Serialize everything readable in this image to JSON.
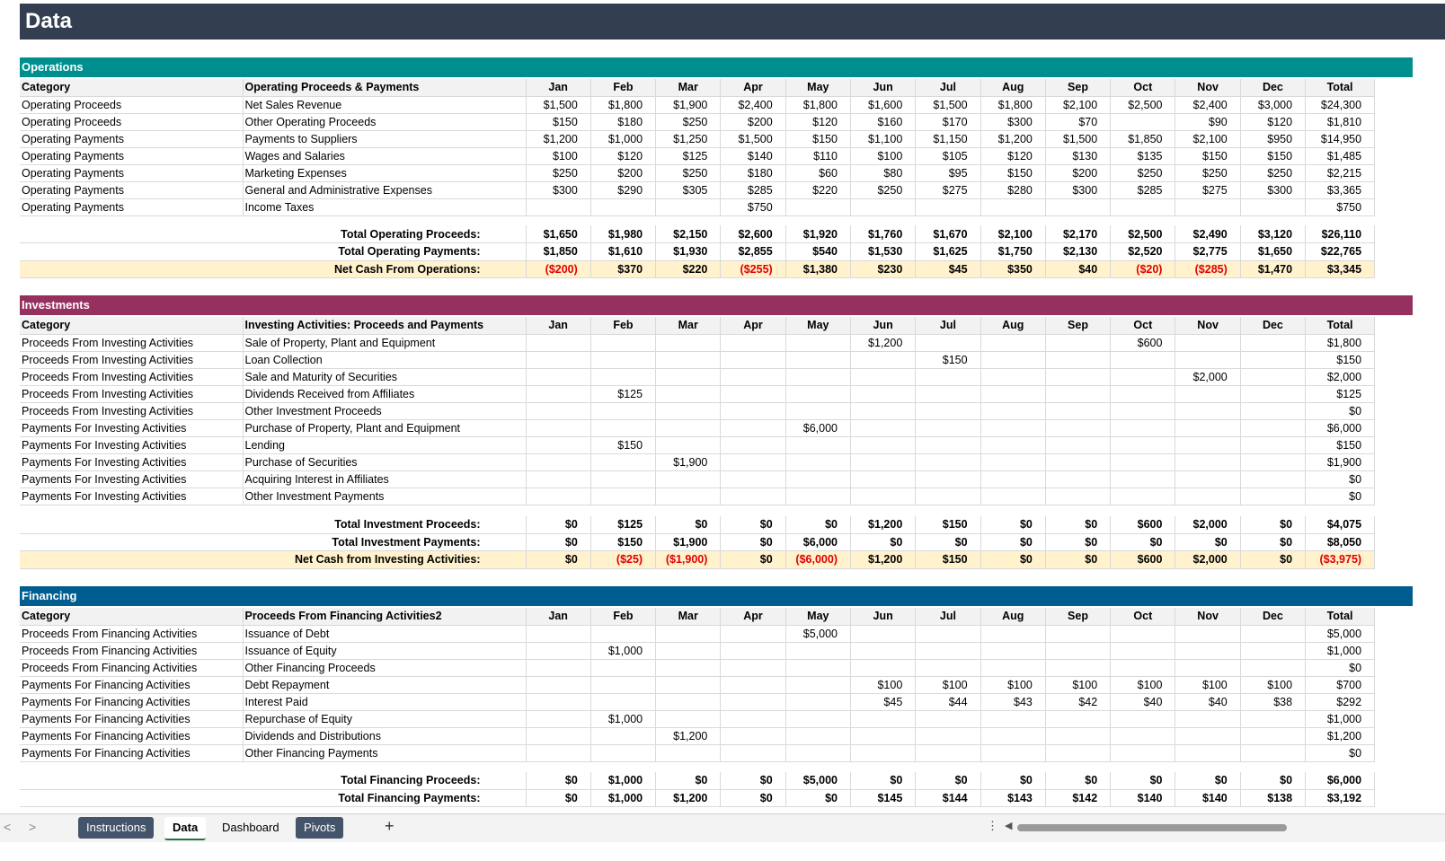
{
  "banner": {
    "title": "Data"
  },
  "months": [
    "Jan",
    "Feb",
    "Mar",
    "Apr",
    "May",
    "Jun",
    "Jul",
    "Aug",
    "Sep",
    "Oct",
    "Nov",
    "Dec"
  ],
  "total_label": "Total",
  "category_label": "Category",
  "colors": {
    "banner": "#333f50",
    "operations": "#008f8f",
    "investments": "#96305f",
    "financing": "#005d8f",
    "net_row": "#fff2cc",
    "negative": "#e00000"
  },
  "operations": {
    "title": "Operations",
    "sub_header": "Operating Proceeds & Payments",
    "rows": [
      {
        "cat": "Operating Proceeds",
        "item": "Net Sales Revenue",
        "vals": [
          "$1,500",
          "$1,800",
          "$1,900",
          "$2,400",
          "$1,800",
          "$1,600",
          "$1,500",
          "$1,800",
          "$2,100",
          "$2,500",
          "$2,400",
          "$3,000"
        ],
        "total": "$24,300"
      },
      {
        "cat": "Operating Proceeds",
        "item": "Other Operating Proceeds",
        "vals": [
          "$150",
          "$180",
          "$250",
          "$200",
          "$120",
          "$160",
          "$170",
          "$300",
          "$70",
          "",
          "$90",
          "$120"
        ],
        "total": "$1,810"
      },
      {
        "cat": "Operating Payments",
        "item": "Payments to Suppliers",
        "vals": [
          "$1,200",
          "$1,000",
          "$1,250",
          "$1,500",
          "$150",
          "$1,100",
          "$1,150",
          "$1,200",
          "$1,500",
          "$1,850",
          "$2,100",
          "$950"
        ],
        "total": "$14,950"
      },
      {
        "cat": "Operating Payments",
        "item": "Wages and Salaries",
        "vals": [
          "$100",
          "$120",
          "$125",
          "$140",
          "$110",
          "$100",
          "$105",
          "$120",
          "$130",
          "$135",
          "$150",
          "$150"
        ],
        "total": "$1,485"
      },
      {
        "cat": "Operating Payments",
        "item": "Marketing Expenses",
        "vals": [
          "$250",
          "$200",
          "$250",
          "$180",
          "$60",
          "$80",
          "$95",
          "$150",
          "$200",
          "$250",
          "$250",
          "$250"
        ],
        "total": "$2,215"
      },
      {
        "cat": "Operating Payments",
        "item": "General and Administrative Expenses",
        "vals": [
          "$300",
          "$290",
          "$305",
          "$285",
          "$220",
          "$250",
          "$275",
          "$280",
          "$300",
          "$285",
          "$275",
          "$300"
        ],
        "total": "$3,365"
      },
      {
        "cat": "Operating Payments",
        "item": "Income Taxes",
        "vals": [
          "",
          "",
          "",
          "$750",
          "",
          "",
          "",
          "",
          "",
          "",
          "",
          ""
        ],
        "total": "$750"
      }
    ],
    "totals": [
      {
        "label": "Total Operating Proceeds:",
        "vals": [
          "$1,650",
          "$1,980",
          "$2,150",
          "$2,600",
          "$1,920",
          "$1,760",
          "$1,670",
          "$2,100",
          "$2,170",
          "$2,500",
          "$2,490",
          "$3,120"
        ],
        "total": "$26,110"
      },
      {
        "label": "Total Operating Payments:",
        "vals": [
          "$1,850",
          "$1,610",
          "$1,930",
          "$2,855",
          "$540",
          "$1,530",
          "$1,625",
          "$1,750",
          "$2,130",
          "$2,520",
          "$2,775",
          "$1,650"
        ],
        "total": "$22,765"
      },
      {
        "label": "Net Cash From Operations:",
        "vals": [
          "($200)",
          "$370",
          "$220",
          "($255)",
          "$1,380",
          "$230",
          "$45",
          "$350",
          "$40",
          "($20)",
          "($285)",
          "$1,470"
        ],
        "total": "$3,345",
        "net": true
      }
    ]
  },
  "investments": {
    "title": "Investments",
    "sub_header": "Investing Activities: Proceeds and Payments",
    "rows": [
      {
        "cat": "Proceeds From Investing Activities",
        "item": "Sale of Property, Plant and Equipment",
        "vals": [
          "",
          "",
          "",
          "",
          "",
          "$1,200",
          "",
          "",
          "",
          "$600",
          "",
          ""
        ],
        "total": "$1,800"
      },
      {
        "cat": "Proceeds From Investing Activities",
        "item": "Loan Collection",
        "vals": [
          "",
          "",
          "",
          "",
          "",
          "",
          "$150",
          "",
          "",
          "",
          "",
          ""
        ],
        "total": "$150"
      },
      {
        "cat": "Proceeds From Investing Activities",
        "item": "Sale and Maturity of Securities",
        "vals": [
          "",
          "",
          "",
          "",
          "",
          "",
          "",
          "",
          "",
          "",
          "$2,000",
          ""
        ],
        "total": "$2,000"
      },
      {
        "cat": "Proceeds From Investing Activities",
        "item": "Dividends Received from Affiliates",
        "vals": [
          "",
          "$125",
          "",
          "",
          "",
          "",
          "",
          "",
          "",
          "",
          "",
          ""
        ],
        "total": "$125"
      },
      {
        "cat": "Proceeds From Investing Activities",
        "item": "Other Investment Proceeds",
        "vals": [
          "",
          "",
          "",
          "",
          "",
          "",
          "",
          "",
          "",
          "",
          "",
          ""
        ],
        "total": "$0"
      },
      {
        "cat": "Payments For Investing Activities",
        "item": "Purchase of Property, Plant and Equipment",
        "vals": [
          "",
          "",
          "",
          "",
          "$6,000",
          "",
          "",
          "",
          "",
          "",
          "",
          ""
        ],
        "total": "$6,000"
      },
      {
        "cat": "Payments For Investing Activities",
        "item": "Lending",
        "vals": [
          "",
          "$150",
          "",
          "",
          "",
          "",
          "",
          "",
          "",
          "",
          "",
          ""
        ],
        "total": "$150"
      },
      {
        "cat": "Payments For Investing Activities",
        "item": "Purchase of Securities",
        "vals": [
          "",
          "",
          "$1,900",
          "",
          "",
          "",
          "",
          "",
          "",
          "",
          "",
          ""
        ],
        "total": "$1,900"
      },
      {
        "cat": "Payments For Investing Activities",
        "item": "Acquiring Interest in Affiliates",
        "vals": [
          "",
          "",
          "",
          "",
          "",
          "",
          "",
          "",
          "",
          "",
          "",
          ""
        ],
        "total": "$0"
      },
      {
        "cat": "Payments For Investing Activities",
        "item": "Other Investment Payments",
        "vals": [
          "",
          "",
          "",
          "",
          "",
          "",
          "",
          "",
          "",
          "",
          "",
          ""
        ],
        "total": "$0"
      }
    ],
    "totals": [
      {
        "label": "Total Investment Proceeds:",
        "vals": [
          "$0",
          "$125",
          "$0",
          "$0",
          "$0",
          "$1,200",
          "$150",
          "$0",
          "$0",
          "$600",
          "$2,000",
          "$0"
        ],
        "total": "$4,075"
      },
      {
        "label": "Total Investment Payments:",
        "vals": [
          "$0",
          "$150",
          "$1,900",
          "$0",
          "$6,000",
          "$0",
          "$0",
          "$0",
          "$0",
          "$0",
          "$0",
          "$0"
        ],
        "total": "$8,050"
      },
      {
        "label": "Net Cash from Investing Activities:",
        "vals": [
          "$0",
          "($25)",
          "($1,900)",
          "$0",
          "($6,000)",
          "$1,200",
          "$150",
          "$0",
          "$0",
          "$600",
          "$2,000",
          "$0"
        ],
        "total": "($3,975)",
        "net": true
      }
    ]
  },
  "financing": {
    "title": "Financing",
    "sub_header": "Proceeds From Financing Activities2",
    "rows": [
      {
        "cat": "Proceeds From Financing Activities",
        "item": "Issuance of Debt",
        "vals": [
          "",
          "",
          "",
          "",
          "$5,000",
          "",
          "",
          "",
          "",
          "",
          "",
          ""
        ],
        "total": "$5,000"
      },
      {
        "cat": "Proceeds From Financing Activities",
        "item": "Issuance of Equity",
        "vals": [
          "",
          "$1,000",
          "",
          "",
          "",
          "",
          "",
          "",
          "",
          "",
          "",
          ""
        ],
        "total": "$1,000"
      },
      {
        "cat": "Proceeds From Financing Activities",
        "item": "Other Financing Proceeds",
        "vals": [
          "",
          "",
          "",
          "",
          "",
          "",
          "",
          "",
          "",
          "",
          "",
          ""
        ],
        "total": "$0"
      },
      {
        "cat": "Payments For Financing Activities",
        "item": "Debt Repayment",
        "vals": [
          "",
          "",
          "",
          "",
          "",
          "$100",
          "$100",
          "$100",
          "$100",
          "$100",
          "$100",
          "$100"
        ],
        "total": "$700"
      },
      {
        "cat": "Payments For Financing Activities",
        "item": "Interest Paid",
        "vals": [
          "",
          "",
          "",
          "",
          "",
          "$45",
          "$44",
          "$43",
          "$42",
          "$40",
          "$40",
          "$38"
        ],
        "total": "$292"
      },
      {
        "cat": "Payments For Financing Activities",
        "item": "Repurchase of Equity",
        "vals": [
          "",
          "$1,000",
          "",
          "",
          "",
          "",
          "",
          "",
          "",
          "",
          "",
          ""
        ],
        "total": "$1,000"
      },
      {
        "cat": "Payments For Financing Activities",
        "item": "Dividends and Distributions",
        "vals": [
          "",
          "",
          "$1,200",
          "",
          "",
          "",
          "",
          "",
          "",
          "",
          "",
          ""
        ],
        "total": "$1,200"
      },
      {
        "cat": "Payments For Financing Activities",
        "item": "Other Financing Payments",
        "vals": [
          "",
          "",
          "",
          "",
          "",
          "",
          "",
          "",
          "",
          "",
          "",
          ""
        ],
        "total": "$0"
      }
    ],
    "totals": [
      {
        "label": "Total Financing Proceeds:",
        "vals": [
          "$0",
          "$1,000",
          "$0",
          "$0",
          "$5,000",
          "$0",
          "$0",
          "$0",
          "$0",
          "$0",
          "$0",
          "$0"
        ],
        "total": "$6,000"
      },
      {
        "label": "Total Financing Payments:",
        "vals": [
          "$0",
          "$1,000",
          "$1,200",
          "$0",
          "$0",
          "$145",
          "$144",
          "$143",
          "$142",
          "$140",
          "$140",
          "$138"
        ],
        "total": "$3,192"
      }
    ]
  },
  "tabs": [
    {
      "label": "Instructions",
      "style": "dark"
    },
    {
      "label": "Data",
      "style": "active"
    },
    {
      "label": "Dashboard",
      "style": "plain"
    },
    {
      "label": "Pivots",
      "style": "dark"
    }
  ],
  "tabbar": {
    "prev": "<",
    "next": ">",
    "add": "+",
    "more": "⋮",
    "scroll_left": "◀"
  }
}
